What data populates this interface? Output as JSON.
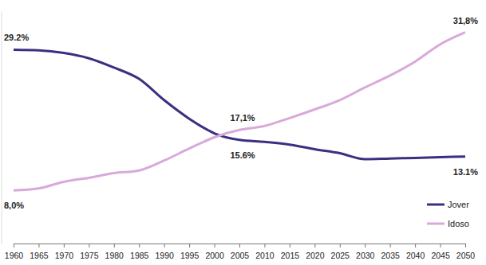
{
  "chart_data": {
    "type": "line",
    "x": [
      1960,
      1965,
      1970,
      1975,
      1980,
      1985,
      1990,
      1995,
      2000,
      2005,
      2010,
      2015,
      2020,
      2025,
      2030,
      2035,
      2040,
      2045,
      2050
    ],
    "series": [
      {
        "name": "Jover",
        "color": "#3b3080",
        "values": [
          29.2,
          29.1,
          28.7,
          27.9,
          26.5,
          24.8,
          21.6,
          18.8,
          16.6,
          15.6,
          15.3,
          14.9,
          14.2,
          13.6,
          12.7,
          12.8,
          12.9,
          13.0,
          13.1
        ]
      },
      {
        "name": "Idoso",
        "color": "#d9a9d9",
        "values": [
          8.0,
          8.3,
          9.3,
          9.9,
          10.6,
          11.0,
          12.5,
          14.3,
          16.0,
          17.1,
          17.7,
          18.9,
          20.2,
          21.6,
          23.5,
          25.3,
          27.4,
          30.0,
          31.8
        ]
      }
    ],
    "xlim": [
      1960,
      2050
    ],
    "xticks": [
      1960,
      1965,
      1970,
      1975,
      1980,
      1985,
      1990,
      1995,
      2000,
      2005,
      2010,
      2015,
      2020,
      2025,
      2030,
      2035,
      2040,
      2045,
      2050
    ],
    "ylim": [
      0,
      35
    ],
    "tick_labels": "x",
    "grid": false,
    "legend": "lower right",
    "annotations": [
      {
        "text": "29.2%",
        "x": 1960,
        "y": 29.2
      },
      {
        "text": "8,0%",
        "x": 1960,
        "y": 8.0
      },
      {
        "text": "17,1%",
        "x": 2005,
        "y": 17.1
      },
      {
        "text": "15.6%",
        "x": 2005,
        "y": 15.6
      },
      {
        "text": "31,8%",
        "x": 2050,
        "y": 31.8
      },
      {
        "text": "13.1%",
        "x": 2050,
        "y": 13.1
      }
    ]
  }
}
